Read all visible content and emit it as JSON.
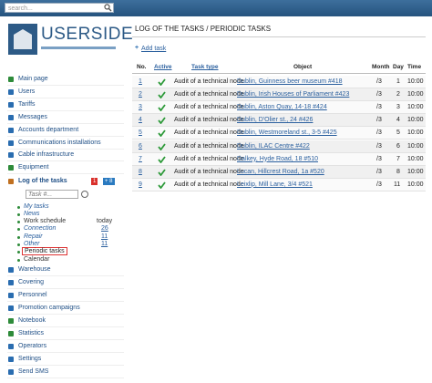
{
  "topbar": {
    "search_placeholder": "search..."
  },
  "logo": {
    "text": "USERSIDE"
  },
  "sidebar": {
    "menu": [
      "Main page",
      "Users",
      "Tariffs",
      "Messages",
      "Accounts department",
      "Communications installations",
      "Cable infrastructure",
      "Equipment"
    ],
    "tasks": {
      "label": "Log of the tasks",
      "badge_red": 1,
      "badge_blue": "+ 8",
      "search_placeholder": "Task #...",
      "submenu": [
        {
          "label": "My tasks"
        },
        {
          "label": "News"
        },
        {
          "label": "Work schedule",
          "count": "today"
        },
        {
          "label": "Connection",
          "count": 26
        },
        {
          "label": "Repair",
          "count": 11
        },
        {
          "label": "Other",
          "count": 11
        },
        {
          "label": "Periodic tasks"
        },
        {
          "label": "Calendar"
        }
      ]
    },
    "menu_after": [
      "Warehouse",
      "Covering",
      "Personnel",
      "Promotion campaigns",
      "Notebook",
      "Statistics",
      "Operators",
      "Settings",
      "Send SMS"
    ]
  },
  "main": {
    "title": "LOG OF THE TASKS / PERIODIC TASKS",
    "add_task": "Add task",
    "table": {
      "headers": [
        "No.",
        "Active",
        "Task type",
        "Object",
        "Month",
        "Day",
        "Time"
      ],
      "rows": [
        [
          1,
          "Audit of a technical node",
          "Dublin, Guinness beer museum #418",
          "/3",
          1,
          "10:00"
        ],
        [
          2,
          "Audit of a technical node",
          "Dublin, Irish Houses of Parliament #423",
          "/3",
          2,
          "10:00"
        ],
        [
          3,
          "Audit of a technical node",
          "Dublin, Aston Quay, 14-18 #424",
          "/3",
          3,
          "10:00"
        ],
        [
          4,
          "Audit of a technical node",
          "Dublin, D'Olier st., 24 #426",
          "/3",
          4,
          "10:00"
        ],
        [
          5,
          "Audit of a technical node",
          "Dublin, Westmoreland st., 3-5 #425",
          "/3",
          5,
          "10:00"
        ],
        [
          6,
          "Audit of a technical node",
          "Dublin, ILAC Centre #422",
          "/3",
          6,
          "10:00"
        ],
        [
          7,
          "Audit of a technical node",
          "Dalkey, Hyde Road, 18 #510",
          "/3",
          7,
          "10:00"
        ],
        [
          8,
          "Audit of a technical node",
          "Lucan, Hillcrest Road, 1a #520",
          "/3",
          8,
          "10:00"
        ],
        [
          9,
          "Audit of a technical node",
          "Leixlip, Mill Lane, 3/4 #521",
          "/3",
          11,
          "10:00"
        ]
      ]
    }
  }
}
